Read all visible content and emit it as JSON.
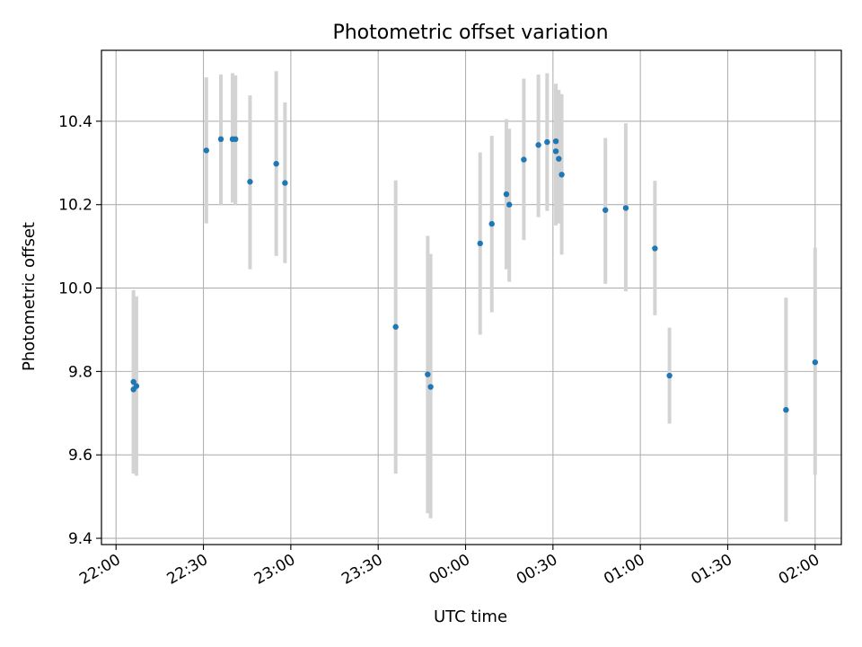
{
  "chart_data": {
    "type": "scatter",
    "title": "Photometric offset variation",
    "xlabel": "UTC time",
    "ylabel": "Photometric offset",
    "x_axis_kind": "time",
    "xlim": [
      "21:55",
      "02:09"
    ],
    "ylim": [
      9.385,
      10.57
    ],
    "grid": true,
    "x_ticks": [
      "22:00",
      "22:30",
      "23:00",
      "23:30",
      "00:00",
      "00:30",
      "01:00",
      "01:30",
      "02:00"
    ],
    "y_ticks": [
      9.4,
      9.6,
      9.8,
      10.0,
      10.2,
      10.4
    ],
    "y_tick_labels": [
      "9.4",
      "9.6",
      "9.8",
      "10.0",
      "10.2",
      "10.4"
    ],
    "colors": {
      "point": "#1f77b4",
      "error_bar": "#d3d3d3",
      "grid": "#b0b0b0"
    },
    "points": [
      {
        "time": "22:06",
        "y": 9.775,
        "low": 9.555,
        "high": 9.995
      },
      {
        "time": "22:06",
        "y": 9.757,
        "low": 9.56,
        "high": 9.985
      },
      {
        "time": "22:07",
        "y": 9.765,
        "low": 9.55,
        "high": 9.98
      },
      {
        "time": "22:31",
        "y": 10.33,
        "low": 10.155,
        "high": 10.505
      },
      {
        "time": "22:36",
        "y": 10.357,
        "low": 10.2,
        "high": 10.512
      },
      {
        "time": "22:40",
        "y": 10.357,
        "low": 10.205,
        "high": 10.515
      },
      {
        "time": "22:41",
        "y": 10.357,
        "low": 10.2,
        "high": 10.51
      },
      {
        "time": "22:46",
        "y": 10.255,
        "low": 10.045,
        "high": 10.462
      },
      {
        "time": "22:55",
        "y": 10.298,
        "low": 10.077,
        "high": 10.52
      },
      {
        "time": "22:58",
        "y": 10.252,
        "low": 10.06,
        "high": 10.445
      },
      {
        "time": "23:36",
        "y": 9.907,
        "low": 9.555,
        "high": 10.258
      },
      {
        "time": "23:47",
        "y": 9.793,
        "low": 9.46,
        "high": 10.125
      },
      {
        "time": "23:48",
        "y": 9.763,
        "low": 9.448,
        "high": 10.082
      },
      {
        "time": "00:05",
        "y": 10.107,
        "low": 9.888,
        "high": 10.325
      },
      {
        "time": "00:09",
        "y": 10.154,
        "low": 9.942,
        "high": 10.365
      },
      {
        "time": "00:14",
        "y": 10.225,
        "low": 10.045,
        "high": 10.405
      },
      {
        "time": "00:15",
        "y": 10.2,
        "low": 10.015,
        "high": 10.382
      },
      {
        "time": "00:20",
        "y": 10.308,
        "low": 10.115,
        "high": 10.502
      },
      {
        "time": "00:25",
        "y": 10.343,
        "low": 10.17,
        "high": 10.512
      },
      {
        "time": "00:28",
        "y": 10.35,
        "low": 10.185,
        "high": 10.515
      },
      {
        "time": "00:31",
        "y": 10.352,
        "low": 10.195,
        "high": 10.49
      },
      {
        "time": "00:31",
        "y": 10.328,
        "low": 10.15,
        "high": 10.482
      },
      {
        "time": "00:32",
        "y": 10.31,
        "low": 10.155,
        "high": 10.475
      },
      {
        "time": "00:33",
        "y": 10.272,
        "low": 10.08,
        "high": 10.465
      },
      {
        "time": "00:48",
        "y": 10.187,
        "low": 10.01,
        "high": 10.36
      },
      {
        "time": "00:55",
        "y": 10.192,
        "low": 9.992,
        "high": 10.395
      },
      {
        "time": "01:05",
        "y": 10.095,
        "low": 9.935,
        "high": 10.257
      },
      {
        "time": "01:10",
        "y": 9.79,
        "low": 9.675,
        "high": 9.905
      },
      {
        "time": "01:50",
        "y": 9.708,
        "low": 9.44,
        "high": 9.977
      },
      {
        "time": "02:00",
        "y": 9.822,
        "low": 9.552,
        "high": 10.097
      }
    ]
  }
}
